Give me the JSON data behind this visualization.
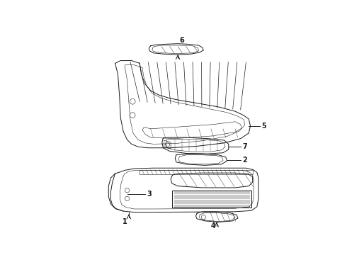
{
  "bg_color": "#ffffff",
  "line_color": "#1a1a1a",
  "lw": 0.7,
  "lw_thin": 0.4,
  "lw_thick": 1.0
}
